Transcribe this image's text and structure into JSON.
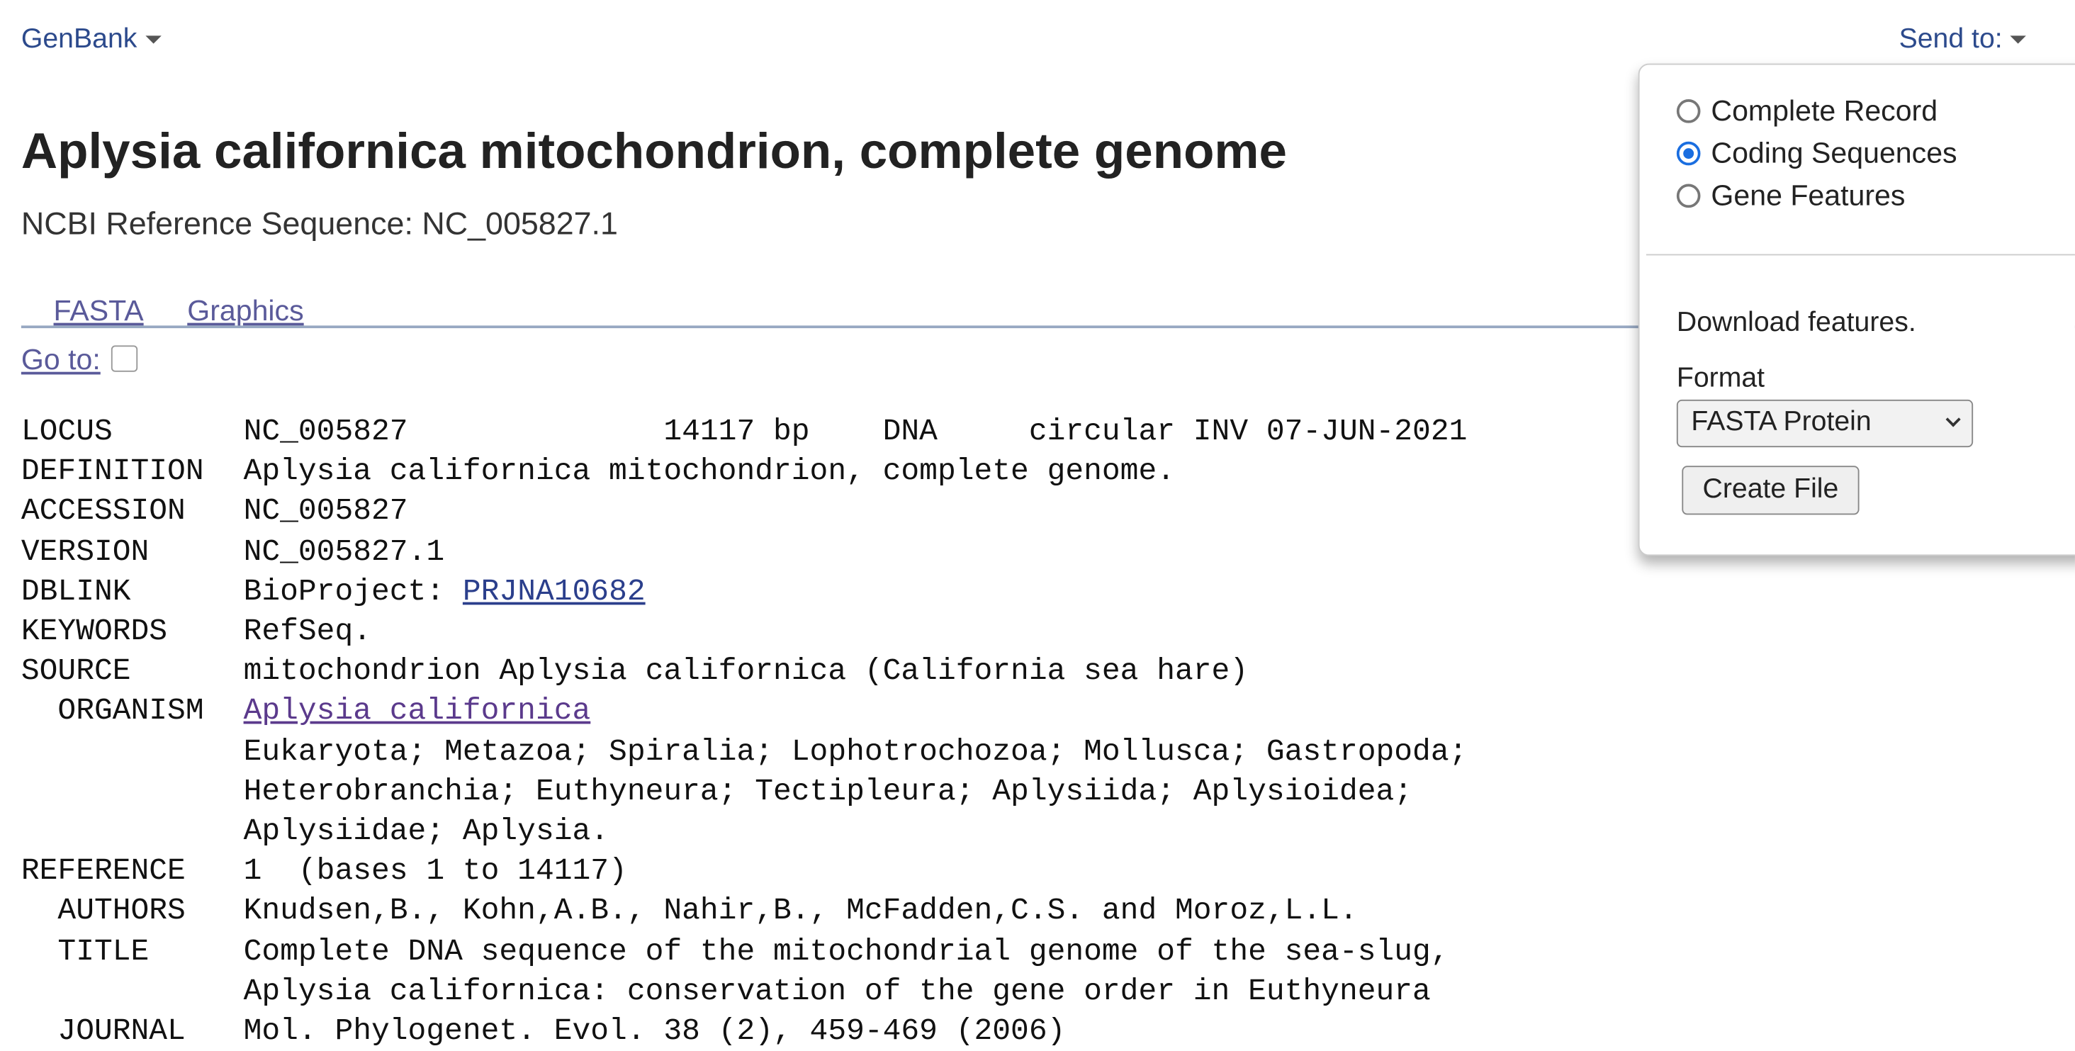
{
  "header": {
    "database": "GenBank",
    "send_to": "Send to:",
    "title": "Aplysia californica mitochondrion, complete genome",
    "subtitle": "NCBI Reference Sequence: NC_005827.1",
    "links": [
      "FASTA",
      "Graphics"
    ],
    "goto": "Go to:"
  },
  "record": [
    {
      "label": "LOCUS",
      "lines": [
        "NC_005827              14117 bp    DNA     circular INV 07-JUN-2021"
      ]
    },
    {
      "label": "DEFINITION",
      "lines": [
        "Aplysia californica mitochondrion, complete genome."
      ]
    },
    {
      "label": "ACCESSION",
      "lines": [
        "NC_005827"
      ]
    },
    {
      "label": "VERSION",
      "lines": [
        "NC_005827.1"
      ]
    },
    {
      "label": "DBLINK",
      "lines": [
        {
          "text": "BioProject: ",
          "link": "PRJNA10682"
        }
      ]
    },
    {
      "label": "KEYWORDS",
      "lines": [
        "RefSeq."
      ]
    },
    {
      "label": "SOURCE",
      "lines": [
        "mitochondrion Aplysia californica (California sea hare)"
      ]
    },
    {
      "label": "  ORGANISM",
      "lines": [
        {
          "link": "Aplysia californica"
        },
        "Eukaryota; Metazoa; Spiralia; Lophotrochozoa; Mollusca; Gastropoda;",
        "Heterobranchia; Euthyneura; Tectipleura; Aplysiida; Aplysioidea;",
        "Aplysiidae; Aplysia."
      ]
    },
    {
      "label": "REFERENCE",
      "lines": [
        "1  (bases 1 to 14117)"
      ]
    },
    {
      "label": "  AUTHORS",
      "lines": [
        "Knudsen,B., Kohn,A.B., Nahir,B., McFadden,C.S. and Moroz,L.L."
      ]
    },
    {
      "label": "  TITLE",
      "lines": [
        "Complete DNA sequence of the mitochondrial genome of the sea-slug,",
        "Aplysia californica: conservation of the gene order in Euthyneura"
      ]
    },
    {
      "label": "  JOURNAL",
      "lines": [
        "Mol. Phylogenet. Evol. 38 (2), 459-469 (2006)"
      ]
    }
  ],
  "panel": {
    "options": [
      "Complete Record",
      "Coding Sequences",
      "Gene Features"
    ],
    "selected": 1,
    "download": "Download features.",
    "format_label": "Format",
    "format": "FASTA Protein",
    "button": "Create File"
  }
}
